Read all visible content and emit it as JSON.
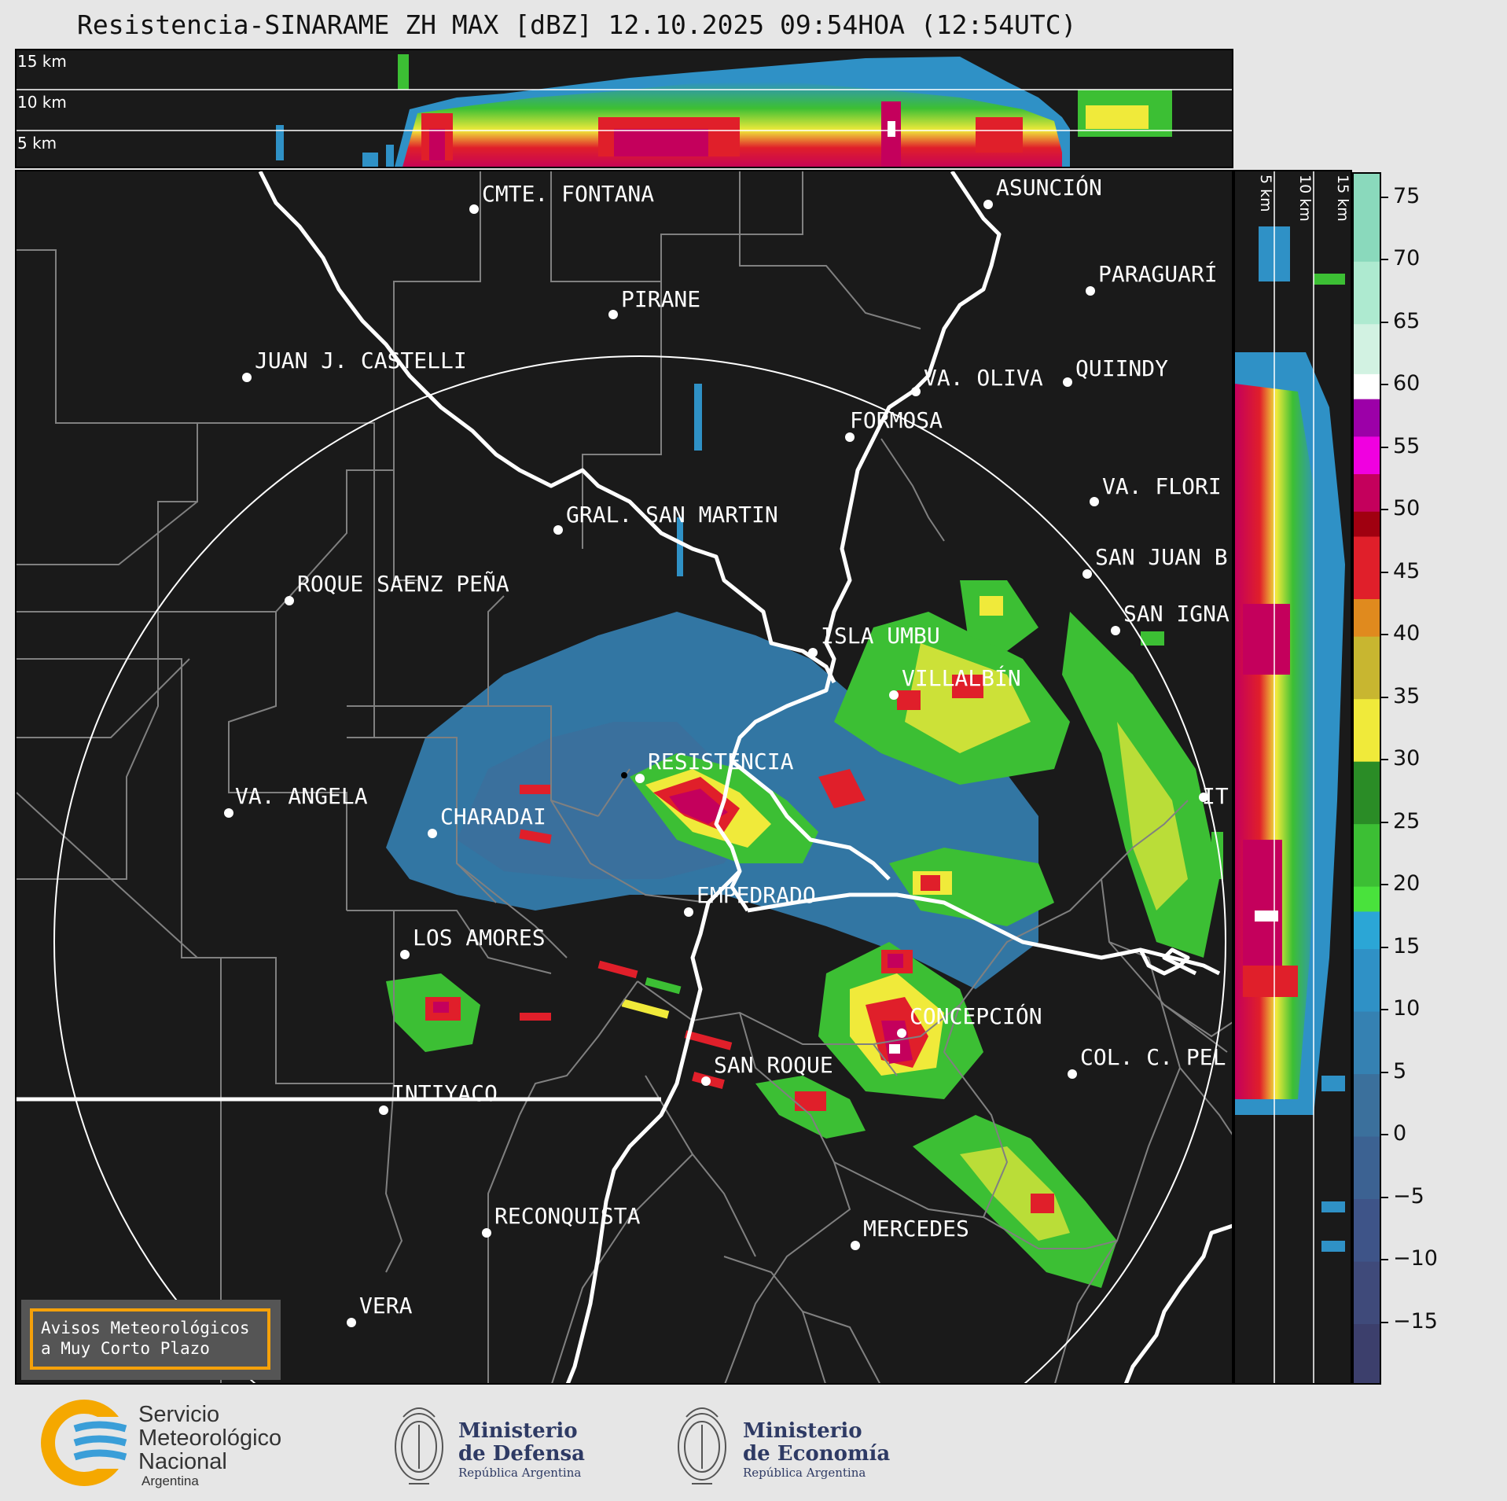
{
  "title": "Resistencia-SINARAME ZH MAX [dBZ] 12.10.2025 09:54HOA (12:54UTC)",
  "top_section_height_labels": [
    "15 km",
    "10 km",
    "5 km"
  ],
  "right_section_height_labels": [
    "5 km",
    "10 km",
    "15 km"
  ],
  "colorbar": {
    "ticks": [
      "75",
      "70",
      "65",
      "60",
      "55",
      "50",
      "45",
      "40",
      "35",
      "30",
      "25",
      "20",
      "15",
      "10",
      "5",
      "0",
      "−5",
      "−10",
      "−15"
    ],
    "range_min": -20,
    "range_max": 77,
    "colors": [
      {
        "from": -20,
        "to": -15,
        "color": "#3c3f6c"
      },
      {
        "from": -15,
        "to": -10,
        "color": "#3f4a7a"
      },
      {
        "from": -10,
        "to": -5,
        "color": "#3e5488"
      },
      {
        "from": -5,
        "to": 0,
        "color": "#3c6292"
      },
      {
        "from": 0,
        "to": 5,
        "color": "#3b709c"
      },
      {
        "from": 5,
        "to": 10,
        "color": "#3581b2"
      },
      {
        "from": 10,
        "to": 15,
        "color": "#2f91c6"
      },
      {
        "from": 15,
        "to": 18,
        "color": "#2ba6d6"
      },
      {
        "from": 18,
        "to": 20,
        "color": "#49e23c"
      },
      {
        "from": 20,
        "to": 25,
        "color": "#3cbf34"
      },
      {
        "from": 25,
        "to": 30,
        "color": "#2a8c26"
      },
      {
        "from": 30,
        "to": 35,
        "color": "#f0ea3a"
      },
      {
        "from": 35,
        "to": 40,
        "color": "#c8b630"
      },
      {
        "from": 40,
        "to": 43,
        "color": "#e08a1e"
      },
      {
        "from": 43,
        "to": 48,
        "color": "#e01f2a"
      },
      {
        "from": 48,
        "to": 50,
        "color": "#a00010"
      },
      {
        "from": 50,
        "to": 53,
        "color": "#c4005c"
      },
      {
        "from": 53,
        "to": 56,
        "color": "#f000e0"
      },
      {
        "from": 56,
        "to": 59,
        "color": "#9c00a8"
      },
      {
        "from": 59,
        "to": 61,
        "color": "#ffffff"
      },
      {
        "from": 61,
        "to": 65,
        "color": "#d2f2e2"
      },
      {
        "from": 65,
        "to": 70,
        "color": "#aeead0"
      },
      {
        "from": 70,
        "to": 77,
        "color": "#8ad9bc"
      }
    ]
  },
  "cities": [
    {
      "id": "cmte-fontana",
      "label": "CMTE. FONTANA"
    },
    {
      "id": "asuncion",
      "label": "ASUNCIÓN"
    },
    {
      "id": "paraguari",
      "label": "PARAGUARÍ"
    },
    {
      "id": "pirane",
      "label": "PIRANE"
    },
    {
      "id": "juan-j-castelli",
      "label": "JUAN J. CASTELLI"
    },
    {
      "id": "va-oliva",
      "label": "VA. OLIVA"
    },
    {
      "id": "quiindy",
      "label": "QUIINDY"
    },
    {
      "id": "formosa",
      "label": "FORMOSA"
    },
    {
      "id": "va-florida",
      "label": "VA. FLORI"
    },
    {
      "id": "gral-san-martin",
      "label": "GRAL. SAN MARTIN"
    },
    {
      "id": "san-juan-b",
      "label": "SAN JUAN B"
    },
    {
      "id": "roque-saenz-pena",
      "label": "ROQUE SAENZ PEÑA"
    },
    {
      "id": "san-ignacio",
      "label": "SAN IGNA"
    },
    {
      "id": "isla-umbu",
      "label": "ISLA UMBU"
    },
    {
      "id": "villalbin",
      "label": "VILLALBÍN"
    },
    {
      "id": "resistencia",
      "label": "RESISTENCIA"
    },
    {
      "id": "it",
      "label": "IT"
    },
    {
      "id": "va-angela",
      "label": "VA. ANGELA"
    },
    {
      "id": "charadai",
      "label": "CHARADAI"
    },
    {
      "id": "empedrado",
      "label": "EMPEDRADO"
    },
    {
      "id": "los-amores",
      "label": "LOS AMORES"
    },
    {
      "id": "concepcion",
      "label": "CONCEPCIÓN"
    },
    {
      "id": "col-c-pel",
      "label": "COL. C. PEL"
    },
    {
      "id": "san-roque",
      "label": "SAN ROQUE"
    },
    {
      "id": "intiyaco",
      "label": "INTIYACO"
    },
    {
      "id": "reconquista",
      "label": "RECONQUISTA"
    },
    {
      "id": "mercedes",
      "label": "MERCEDES"
    },
    {
      "id": "vera",
      "label": "VERA"
    }
  ],
  "warning_box": {
    "line1": "Avisos Meteorológicos",
    "line2": "a Muy Corto Plazo"
  },
  "logos": {
    "smn": {
      "line1": "Servicio",
      "line2": "Meteorológico",
      "line3": "Nacional",
      "line4": "Argentina"
    },
    "defensa": {
      "line1": "Ministerio",
      "line2": "de Defensa",
      "line3": "República Argentina"
    },
    "economia": {
      "line1": "Ministerio",
      "line2": "de Economía",
      "line3": "República Argentina"
    }
  },
  "colors": {
    "background": "#1a1a1a",
    "border_lines": "#ffffff",
    "province_lines": "#808080",
    "range_ring": "#ffffff",
    "warning_border": "#f5a10a",
    "logo_blue": "#2e3a64",
    "smn_orange": "#f5a800",
    "smn_blue": "#3a9ed8"
  }
}
